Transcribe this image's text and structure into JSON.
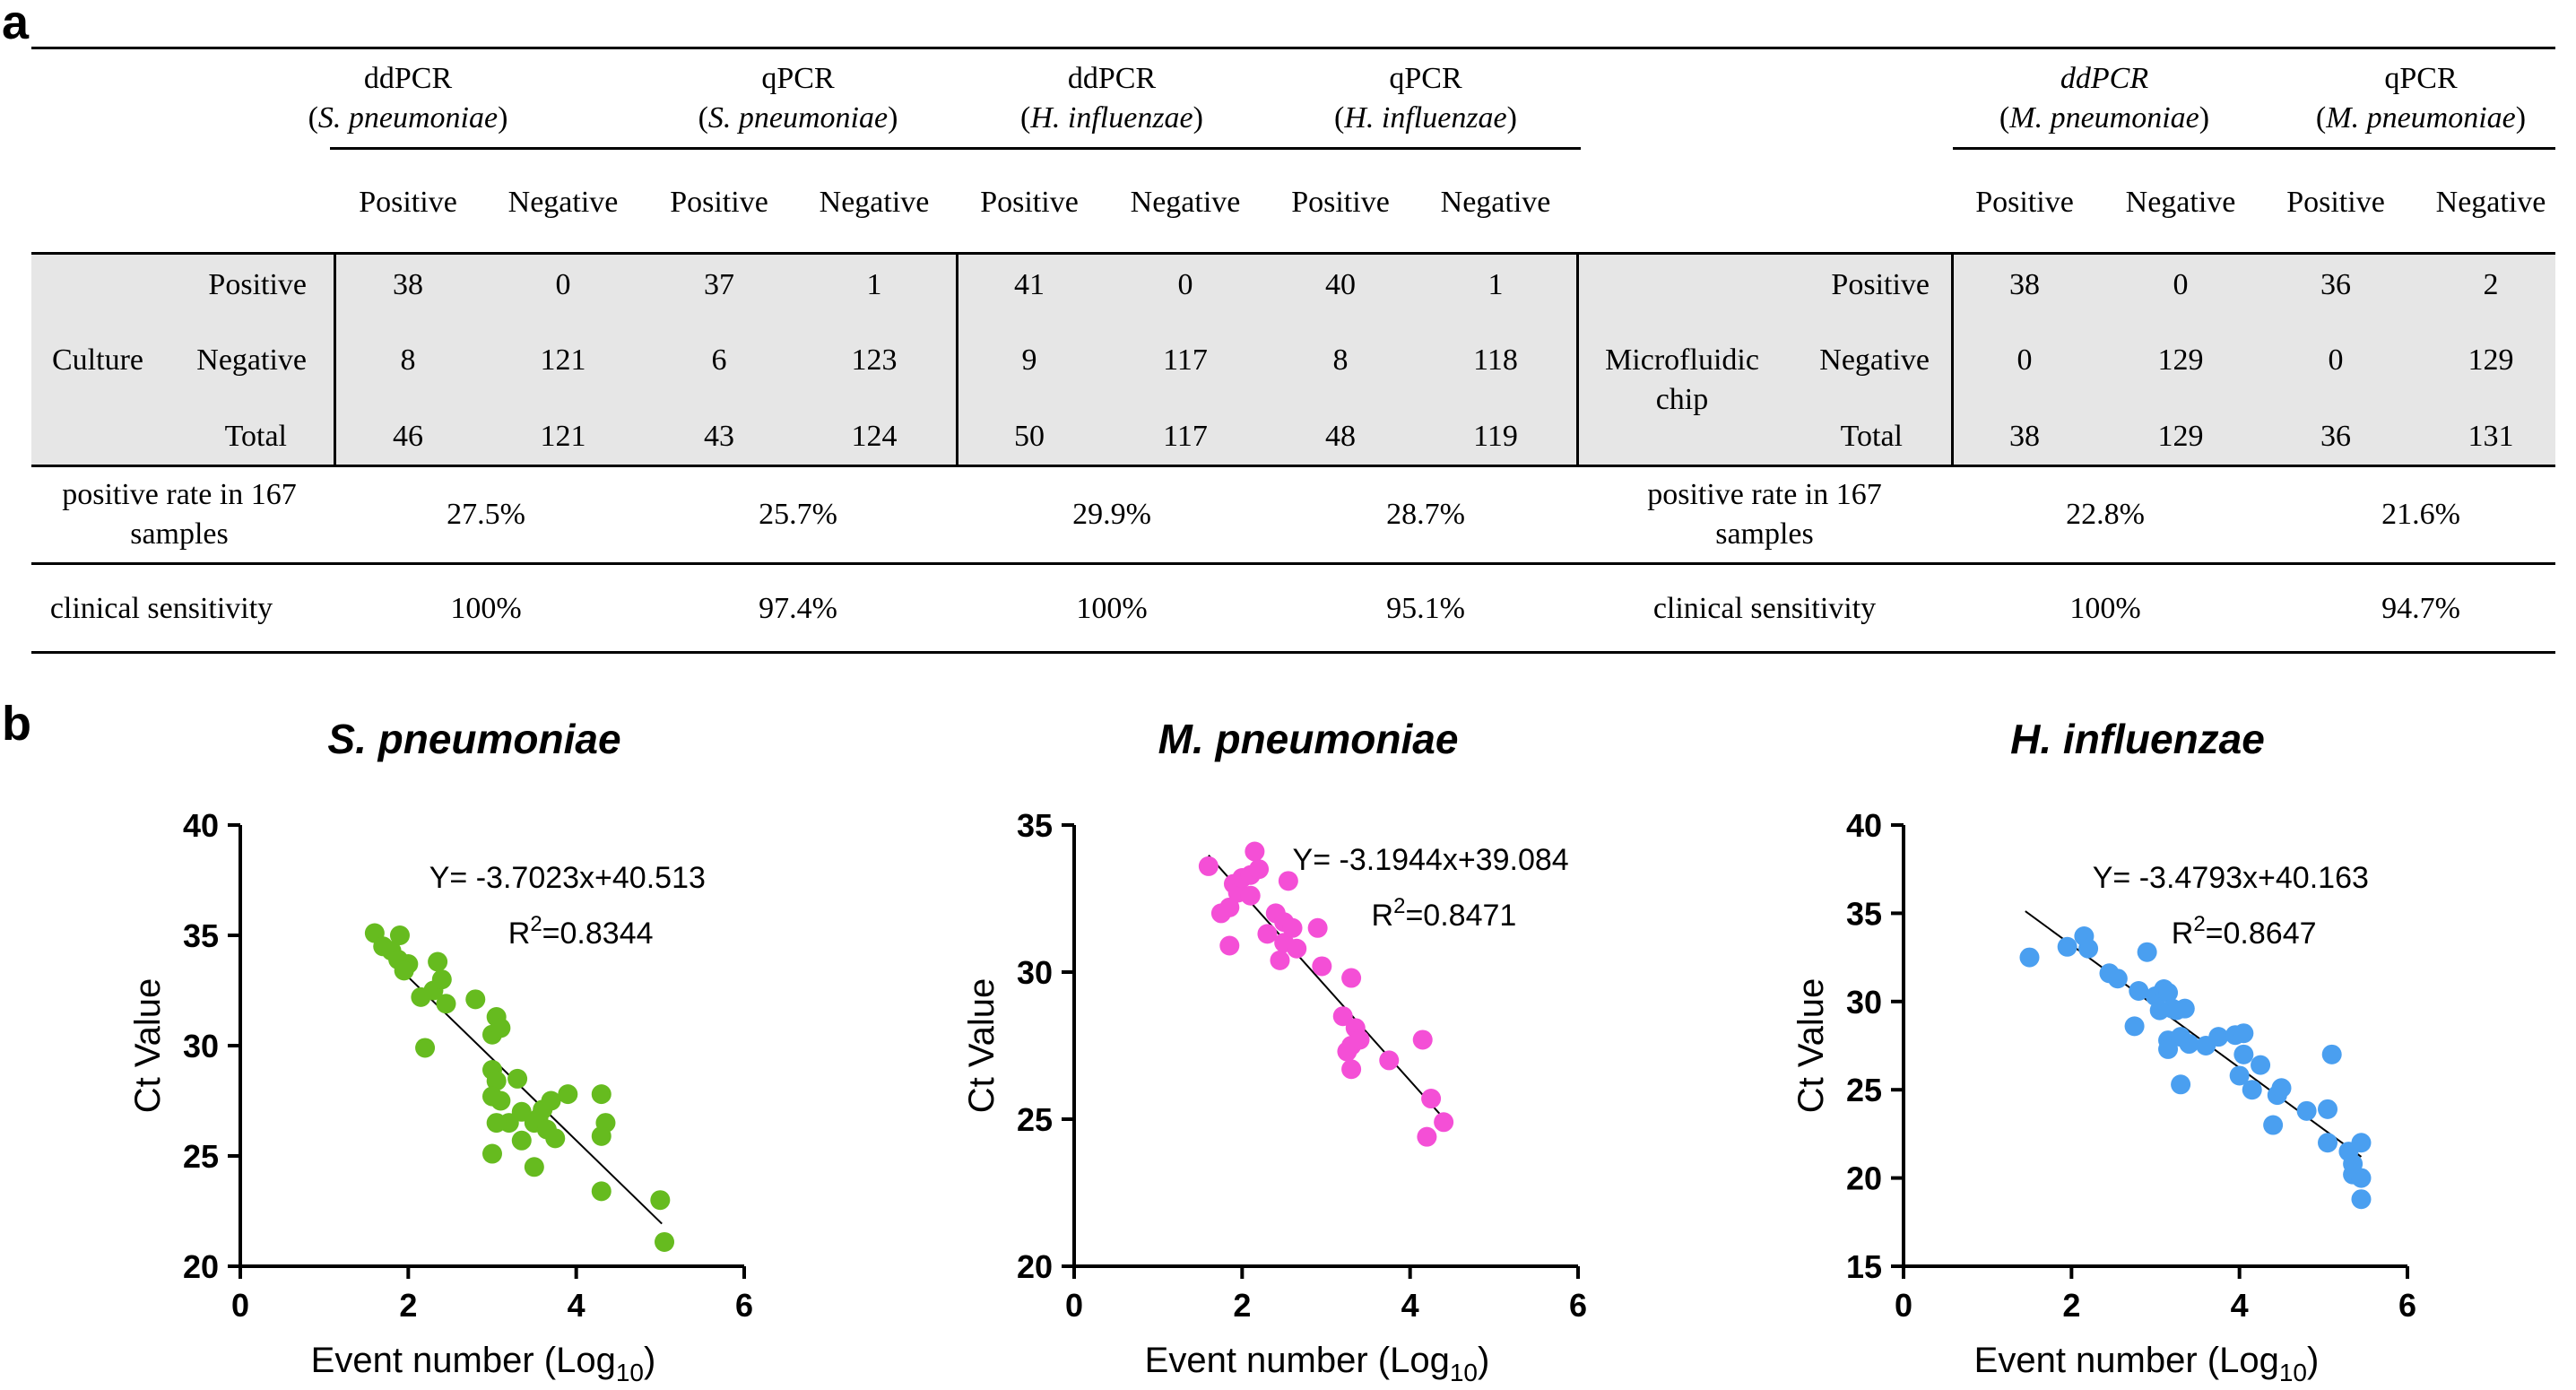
{
  "panels": {
    "a": "a",
    "b": "b"
  },
  "table_left": {
    "groups": [
      {
        "assay": "ddPCR",
        "species": "S. pneumoniae"
      },
      {
        "assay": "qPCR",
        "species": "S. pneumoniae"
      },
      {
        "assay": "ddPCR",
        "species": "H. influenzae"
      },
      {
        "assay": "qPCR",
        "species": "H. influenzae"
      }
    ],
    "reference": "Culture",
    "subheaders": [
      "Positive",
      "Negative"
    ],
    "row_labels": [
      "Positive",
      "Negative",
      "Total"
    ],
    "rows": [
      [
        "38",
        "0",
        "37",
        "1",
        "41",
        "0",
        "40",
        "1"
      ],
      [
        "8",
        "121",
        "6",
        "123",
        "9",
        "117",
        "8",
        "118"
      ],
      [
        "46",
        "121",
        "43",
        "124",
        "50",
        "117",
        "48",
        "119"
      ]
    ],
    "positive_rate_label_1": "positive rate in 167",
    "positive_rate_label_2": "samples",
    "positive_rate": [
      "27.5%",
      "25.7%",
      "29.9%",
      "28.7%"
    ],
    "sensitivity_label": "clinical sensitivity",
    "sensitivity": [
      "100%",
      "97.4%",
      "100%",
      "95.1%"
    ]
  },
  "table_right": {
    "groups": [
      {
        "assay": "ddPCR",
        "species": "M. pneumoniae"
      },
      {
        "assay": "qPCR",
        "species": "M. pneumoniae"
      }
    ],
    "reference_1": "Microfluidic",
    "reference_2": "chip",
    "rows": [
      [
        "38",
        "0",
        "36",
        "2"
      ],
      [
        "0",
        "129",
        "0",
        "129"
      ],
      [
        "38",
        "129",
        "36",
        "131"
      ]
    ],
    "positive_rate": [
      "22.8%",
      "21.6%"
    ],
    "sensitivity": [
      "100%",
      "94.7%"
    ]
  },
  "colors": {
    "green": "#66bb1f",
    "pink": "#f44fd6",
    "blue": "#4a9ff0",
    "shade": "#e6e6e6"
  },
  "chart_data": [
    {
      "type": "scatter",
      "title": "S. pneumoniae",
      "xlabel": "Event number (Log",
      "xlabel_sub": "10",
      "xlabel_end": ")",
      "ylabel": "Ct Value",
      "xlim": [
        0,
        6
      ],
      "ylim": [
        20,
        40
      ],
      "xticks": [
        0,
        2,
        4,
        6
      ],
      "yticks": [
        20,
        25,
        30,
        35,
        40
      ],
      "equation": "Y= -3.7023x+40.513",
      "r2_prefix": "R",
      "r2_sup": "2",
      "r2_value": "=0.8344",
      "fit": {
        "slope": -3.7023,
        "intercept": 40.513,
        "x_range": [
          1.62,
          5.02
        ]
      },
      "color": "#66bb1f",
      "points": [
        [
          1.6,
          35.1
        ],
        [
          1.7,
          34.5
        ],
        [
          1.8,
          34.3
        ],
        [
          1.9,
          35.0
        ],
        [
          1.88,
          33.9
        ],
        [
          2.0,
          33.7
        ],
        [
          1.95,
          33.4
        ],
        [
          2.15,
          32.2
        ],
        [
          2.3,
          32.5
        ],
        [
          2.35,
          33.8
        ],
        [
          2.4,
          33.0
        ],
        [
          2.45,
          31.9
        ],
        [
          2.2,
          29.9
        ],
        [
          2.8,
          32.1
        ],
        [
          3.0,
          30.5
        ],
        [
          3.05,
          31.3
        ],
        [
          3.1,
          30.8
        ],
        [
          3.0,
          28.9
        ],
        [
          3.05,
          28.4
        ],
        [
          3.1,
          27.5
        ],
        [
          3.3,
          28.5
        ],
        [
          3.35,
          27.0
        ],
        [
          3.0,
          27.7
        ],
        [
          3.2,
          26.5
        ],
        [
          3.55,
          26.7
        ],
        [
          3.6,
          27.1
        ],
        [
          3.7,
          27.5
        ],
        [
          3.9,
          27.8
        ],
        [
          3.5,
          26.5
        ],
        [
          3.65,
          26.2
        ],
        [
          3.05,
          26.5
        ],
        [
          3.35,
          25.7
        ],
        [
          3.75,
          25.8
        ],
        [
          3.0,
          25.1
        ],
        [
          3.5,
          24.5
        ],
        [
          4.3,
          27.8
        ],
        [
          4.35,
          26.5
        ],
        [
          4.3,
          25.9
        ],
        [
          4.3,
          23.4
        ],
        [
          5.0,
          23.0
        ],
        [
          5.05,
          21.1
        ]
      ]
    },
    {
      "type": "scatter",
      "title": "M. pneumoniae",
      "xlabel": "Event number (Log",
      "xlabel_sub": "10",
      "xlabel_end": ")",
      "ylabel": "Ct Value",
      "xlim": [
        0,
        6
      ],
      "ylim": [
        20,
        35
      ],
      "xticks": [
        0,
        2,
        4,
        6
      ],
      "yticks": [
        20,
        25,
        30,
        35
      ],
      "equation": "Y= -3.1944x+39.084",
      "r2_prefix": "R",
      "r2_sup": "2",
      "r2_value": "=0.8471",
      "fit": {
        "slope": -3.1944,
        "intercept": 39.084,
        "x_range": [
          1.6,
          4.4
        ]
      },
      "color": "#f44fd6",
      "points": [
        [
          1.6,
          33.6
        ],
        [
          1.75,
          32.0
        ],
        [
          1.85,
          32.2
        ],
        [
          1.9,
          33.0
        ],
        [
          1.95,
          32.7
        ],
        [
          2.0,
          33.2
        ],
        [
          2.1,
          33.3
        ],
        [
          2.1,
          32.6
        ],
        [
          2.15,
          34.1
        ],
        [
          2.2,
          33.5
        ],
        [
          1.85,
          30.9
        ],
        [
          2.3,
          31.3
        ],
        [
          2.4,
          32.0
        ],
        [
          2.5,
          31.7
        ],
        [
          2.55,
          33.1
        ],
        [
          2.5,
          31.0
        ],
        [
          2.6,
          31.5
        ],
        [
          2.45,
          30.4
        ],
        [
          2.65,
          30.8
        ],
        [
          2.9,
          31.5
        ],
        [
          2.95,
          30.2
        ],
        [
          3.2,
          28.5
        ],
        [
          3.3,
          29.8
        ],
        [
          3.25,
          27.3
        ],
        [
          3.3,
          27.5
        ],
        [
          3.35,
          28.1
        ],
        [
          3.4,
          27.7
        ],
        [
          3.3,
          26.7
        ],
        [
          3.75,
          27.0
        ],
        [
          4.15,
          27.7
        ],
        [
          4.25,
          25.7
        ],
        [
          4.4,
          24.9
        ],
        [
          4.2,
          24.4
        ]
      ]
    },
    {
      "type": "scatter",
      "title": "H. influenzae",
      "xlabel": "Event number (Log",
      "xlabel_sub": "10",
      "xlabel_end": ")",
      "ylabel": "Ct Value",
      "xlim": [
        0,
        6
      ],
      "ylim": [
        15,
        40
      ],
      "xticks": [
        0,
        2,
        4,
        6
      ],
      "yticks": [
        15,
        20,
        25,
        30,
        35,
        40
      ],
      "equation": "Y= -3.4793x+40.163",
      "r2_prefix": "R",
      "r2_sup": "2",
      "r2_value": "=0.8647",
      "fit": {
        "slope": -3.4793,
        "intercept": 40.163,
        "x_range": [
          1.45,
          5.45
        ]
      },
      "color": "#4a9ff0",
      "points": [
        [
          1.5,
          32.5
        ],
        [
          1.95,
          33.1
        ],
        [
          2.15,
          33.7
        ],
        [
          2.2,
          33.0
        ],
        [
          2.45,
          31.6
        ],
        [
          2.55,
          31.3
        ],
        [
          2.8,
          30.6
        ],
        [
          2.9,
          32.8
        ],
        [
          3.0,
          30.3
        ],
        [
          3.1,
          30.7
        ],
        [
          3.15,
          30.5
        ],
        [
          3.2,
          29.6
        ],
        [
          3.25,
          29.5
        ],
        [
          3.35,
          29.6
        ],
        [
          3.05,
          29.5
        ],
        [
          2.75,
          28.6
        ],
        [
          3.15,
          27.8
        ],
        [
          3.3,
          28.0
        ],
        [
          3.4,
          27.6
        ],
        [
          3.15,
          27.3
        ],
        [
          3.6,
          27.5
        ],
        [
          3.75,
          28.0
        ],
        [
          3.95,
          28.1
        ],
        [
          4.05,
          28.2
        ],
        [
          4.05,
          27.0
        ],
        [
          4.25,
          26.4
        ],
        [
          4.0,
          25.8
        ],
        [
          4.15,
          25.0
        ],
        [
          4.45,
          24.7
        ],
        [
          4.5,
          25.1
        ],
        [
          3.3,
          25.3
        ],
        [
          4.8,
          23.8
        ],
        [
          4.4,
          23.0
        ],
        [
          5.05,
          23.9
        ],
        [
          5.1,
          27.0
        ],
        [
          5.05,
          22.0
        ],
        [
          5.3,
          21.5
        ],
        [
          5.35,
          20.8
        ],
        [
          5.35,
          20.2
        ],
        [
          5.45,
          22.0
        ],
        [
          5.45,
          20.0
        ],
        [
          5.45,
          18.8
        ]
      ]
    }
  ]
}
